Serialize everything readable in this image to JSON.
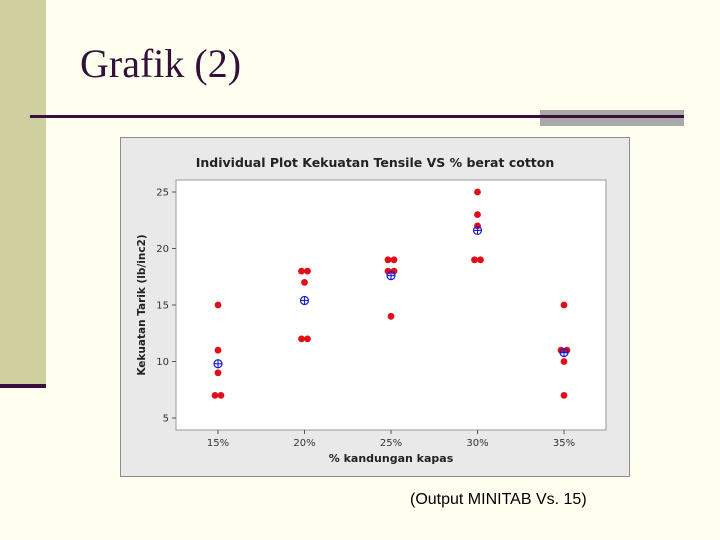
{
  "slide": {
    "title": "Grafik (2)",
    "caption": "(Output MINITAB Vs. 15)"
  },
  "colors": {
    "accent_bar": "#cfcf9f",
    "rule": "#3a0f3e",
    "point": "#e0101a",
    "mean": "#1a1ad6"
  },
  "chart_data": {
    "type": "scatter",
    "title": "Individual Plot Kekuatan Tensile VS % berat cotton",
    "xlabel": "% kandungan kapas",
    "ylabel": "Kekuatan Tarik  (lb/inc2)",
    "categories": [
      "15%",
      "20%",
      "25%",
      "30%",
      "35%"
    ],
    "ylim": [
      5,
      25
    ],
    "yticks": [
      5,
      10,
      15,
      20,
      25
    ],
    "grid": false,
    "points": [
      [
        7,
        7,
        15,
        11,
        9
      ],
      [
        12,
        17,
        12,
        18,
        18
      ],
      [
        14,
        18,
        18,
        19,
        19
      ],
      [
        19,
        25,
        22,
        19,
        23
      ],
      [
        7,
        10,
        11,
        15,
        11
      ]
    ],
    "means": [
      9.8,
      15.4,
      17.6,
      21.6,
      10.8
    ]
  }
}
